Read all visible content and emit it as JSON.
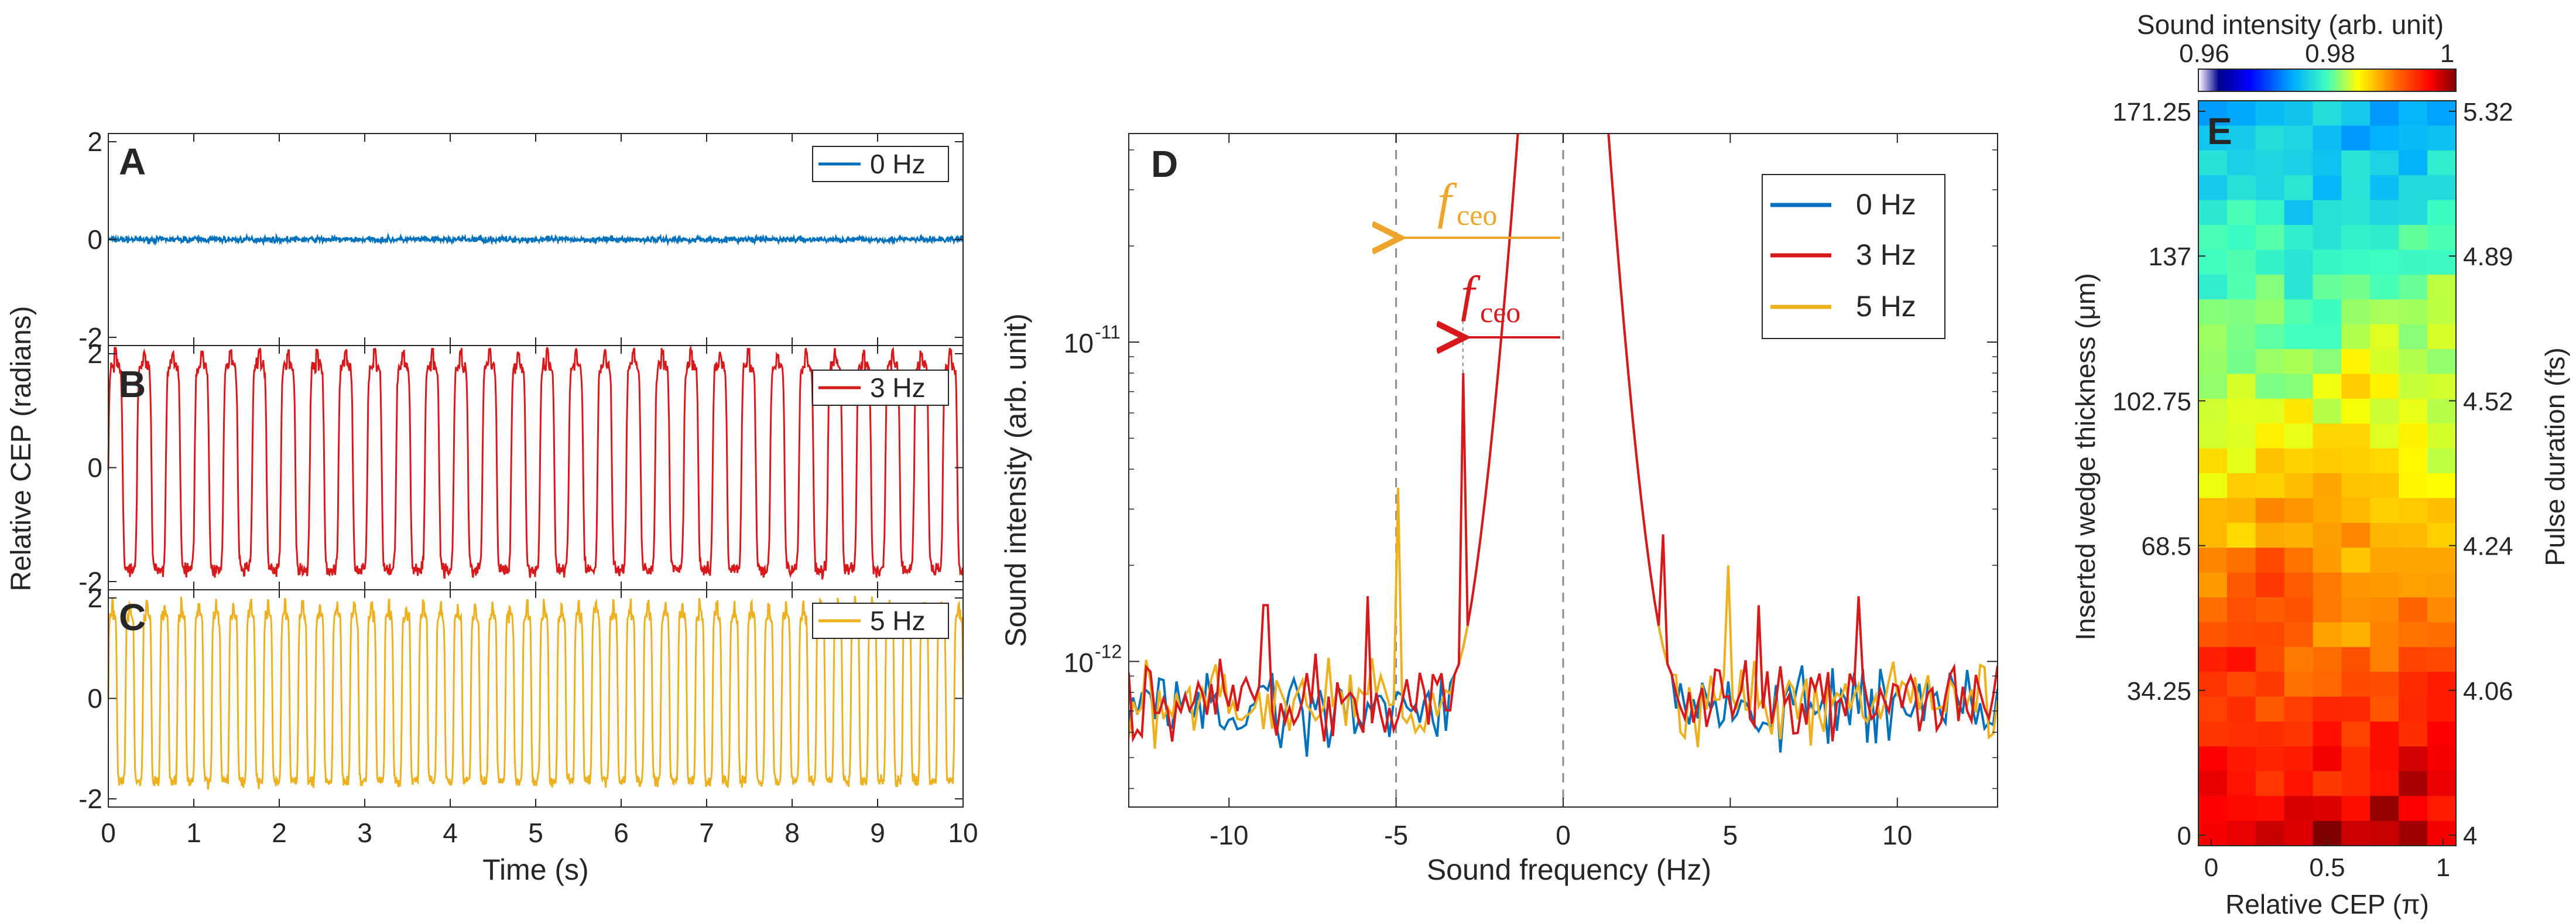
{
  "colors": {
    "blue": "#0072BD",
    "red": "#D7191C",
    "orange": "#EDB120",
    "axis": "#262626",
    "guide": "#8c8c8c",
    "arrow_orange": "#EDA52A",
    "arrow_red": "#D7191C"
  },
  "chart_data": [
    {
      "id": "A",
      "type": "line",
      "panel_label": "A",
      "xlim": [
        0,
        10
      ],
      "ylim": [
        -2,
        2
      ],
      "yticks": [
        "2",
        "0",
        "-2"
      ],
      "series": [
        {
          "name": "0 Hz",
          "color": "#0072BD",
          "frequency_hz": 0,
          "amplitude": 0.05
        }
      ]
    },
    {
      "id": "B",
      "type": "line",
      "panel_label": "B",
      "xlim": [
        0,
        10
      ],
      "ylim": [
        -2,
        2
      ],
      "yticks": [
        "2",
        "0",
        "-2"
      ],
      "series": [
        {
          "name": "3 Hz",
          "color": "#D7191C",
          "frequency_hz": 3,
          "amplitude": 1.8
        }
      ]
    },
    {
      "id": "C",
      "type": "line",
      "panel_label": "C",
      "xlim": [
        0,
        10
      ],
      "ylim": [
        -2,
        2
      ],
      "yticks": [
        "2",
        "0",
        "-2"
      ],
      "xticks": [
        "0",
        "1",
        "2",
        "3",
        "4",
        "5",
        "6",
        "7",
        "8",
        "9",
        "10"
      ],
      "xlabel": "Time (s)",
      "series": [
        {
          "name": "5 Hz",
          "color": "#EDB120",
          "frequency_hz": 5,
          "amplitude": 1.65
        }
      ]
    },
    {
      "id": "D",
      "type": "line",
      "panel_label": "D",
      "xlabel": "Sound frequency (Hz)",
      "ylabel": "Sound intensity (arb. unit)",
      "xlim": [
        -13,
        13
      ],
      "ylim": [
        3.5e-13,
        4.5e-11
      ],
      "yscale": "log",
      "xticks": [
        "-10",
        "-5",
        "0",
        "5",
        "10"
      ],
      "yticks": [
        "10^-11",
        "10^-12"
      ],
      "legend_position": "top-right",
      "series": [
        {
          "name": "0 Hz",
          "color": "#0072BD",
          "peaks_hz": []
        },
        {
          "name": "3 Hz",
          "color": "#D7191C",
          "peaks_hz": [
            -8.9,
            -5.9,
            -3.0,
            3.0,
            5.9,
            8.9
          ]
        },
        {
          "name": "5 Hz",
          "color": "#EDB120",
          "peaks_hz": [
            -4.9,
            4.9
          ]
        }
      ],
      "peak_values": {
        "-3.0": 8e-12,
        "-4.9": 3.5e-12,
        "4.9": 2e-12,
        "3.0": 2.5e-12,
        "-5.9": 1.6e-12,
        "-8.9": 1.5e-12,
        "5.9": 1.5e-12,
        "8.9": 1.6e-12
      },
      "annotations": {
        "f_ceo_5hz": {
          "text": "f",
          "sub": "ceo",
          "color": "#EDA52A",
          "from_hz": 0,
          "to_hz": -5
        },
        "f_ceo_3hz": {
          "text": "f",
          "sub": "ceo",
          "color": "#D7191C",
          "from_hz": 0,
          "to_hz": -3
        }
      }
    },
    {
      "id": "E",
      "type": "heatmap",
      "panel_label": "E",
      "xlabel": "Relative CEP (π)",
      "ylabel_left": "Inserted wedge thickness (μm)",
      "ylabel_right": "Pulse duration (fs)",
      "xticks": [
        "0",
        "0.5",
        "1"
      ],
      "yticks_left": [
        "171.25",
        "137",
        "102.75",
        "68.5",
        "34.25",
        "0"
      ],
      "yticks_right": [
        "5.32",
        "4.89",
        "4.52",
        "4.24",
        "4.06",
        "4"
      ],
      "colorbar_title": "Sound intensity (arb. unit)",
      "colorbar_ticks": [
        "0.96",
        "0.98",
        "1"
      ],
      "clim": [
        0.96,
        1.0
      ],
      "grid_cols": 9,
      "grid_rows": 30
    }
  ],
  "texts": {
    "shared_ylabel_ABC": "Relative CEP (radians)"
  }
}
